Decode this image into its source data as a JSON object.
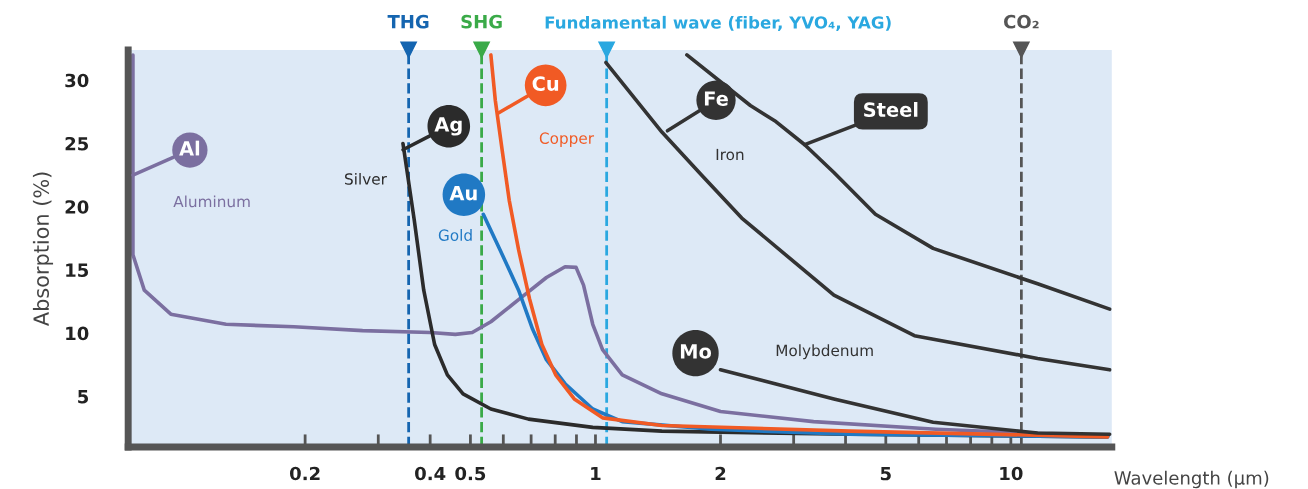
{
  "chart_data": {
    "type": "line",
    "xlabel": "Wavelength (μm)",
    "ylabel": "Absorption (%)",
    "log": "x",
    "xlim": [
      0.075,
      17.5
    ],
    "ylim": [
      1,
      32.4
    ],
    "xticks": [
      0.2,
      {
        "value": 0.3,
        "label": null
      },
      0.4,
      0.5,
      {
        "value": 0.6,
        "label": null
      },
      {
        "value": 0.7,
        "label": null
      },
      {
        "value": 0.8,
        "label": null
      },
      {
        "value": 0.9,
        "label": null
      },
      1,
      2,
      {
        "value": 3,
        "label": null
      },
      {
        "value": 4,
        "label": null
      },
      5,
      {
        "value": 6,
        "label": null
      },
      {
        "value": 7,
        "label": null
      },
      {
        "value": 8,
        "label": null
      },
      {
        "value": 9,
        "label": null
      },
      10
    ],
    "yticks": [
      5,
      10,
      15,
      20,
      25,
      30
    ],
    "grid": false,
    "legend": false,
    "series": [
      {
        "name": "Aluminum",
        "color": "#7b6fa0",
        "x": [
          0.077,
          0.077,
          0.082,
          0.095,
          0.129,
          0.188,
          0.275,
          0.4,
          0.46,
          0.505,
          0.56,
          0.653,
          0.762,
          0.845,
          0.898,
          0.936,
          0.985,
          1.04,
          1.16,
          1.445,
          2.0,
          3.35,
          6.6,
          17.1
        ],
        "values": [
          32,
          16.2,
          13.4,
          11.5,
          10.7,
          10.5,
          10.2,
          10.05,
          9.9,
          10.05,
          10.9,
          12.65,
          14.4,
          15.25,
          15.2,
          13.8,
          10.7,
          8.7,
          6.7,
          5.2,
          3.8,
          3.0,
          2.4,
          1.85
        ]
      },
      {
        "name": "Silver",
        "color": "#2b2b2b",
        "x": [
          0.344,
          0.366,
          0.386,
          0.41,
          0.44,
          0.48,
          0.56,
          0.69,
          0.985,
          1.445,
          4.1,
          17.1
        ],
        "values": [
          25.0,
          19.0,
          13.4,
          9.1,
          6.7,
          5.2,
          4.0,
          3.2,
          2.55,
          2.25,
          2.0,
          1.8
        ]
      },
      {
        "name": "Gold",
        "color": "#2079c4",
        "x": [
          0.537,
          0.589,
          0.653,
          0.706,
          0.762,
          0.845,
          0.985,
          1.16,
          1.9,
          4.1,
          17.1
        ],
        "values": [
          19.4,
          16.6,
          13.4,
          10.3,
          7.9,
          6.0,
          4.0,
          3.0,
          2.4,
          2.0,
          1.8
        ]
      },
      {
        "name": "Copper",
        "color": "#f15a24",
        "x": [
          0.56,
          0.574,
          0.596,
          0.62,
          0.653,
          0.694,
          0.743,
          0.802,
          0.889,
          1.04,
          1.445,
          4.1,
          17.1
        ],
        "values": [
          32,
          28.4,
          24.5,
          20.5,
          16.6,
          12.7,
          9.1,
          6.7,
          4.8,
          3.3,
          2.7,
          2.25,
          1.8
        ]
      },
      {
        "name": "Iron",
        "color": "#333333",
        "x": [
          1.06,
          1.445,
          1.8,
          2.25,
          3.75,
          5.86,
          11.6,
          17.3
        ],
        "values": [
          31.4,
          25.9,
          22.5,
          19.1,
          13.0,
          9.8,
          8.0,
          7.1
        ]
      },
      {
        "name": "Molybdenum",
        "color": "#333333",
        "x": [
          2.0,
          3.75,
          6.5,
          11.6,
          17.3
        ],
        "values": [
          7.1,
          4.8,
          2.95,
          2.1,
          2.0
        ]
      },
      {
        "name": "Steel",
        "color": "#333333",
        "x": [
          1.66,
          2.36,
          2.7,
          3.19,
          3.75,
          4.72,
          6.5,
          11.6,
          17.3
        ],
        "values": [
          32,
          28.0,
          26.8,
          24.9,
          22.7,
          19.4,
          16.7,
          13.9,
          11.9
        ]
      }
    ],
    "annotations": [
      {
        "text": "Al",
        "x": 0.077,
        "y": 22.5
      },
      {
        "text": "Ag",
        "x": 0.344,
        "y": 24.5
      },
      {
        "text": "Au",
        "x": 0.537,
        "y": 19.4
      },
      {
        "text": "Cu",
        "x": 0.584,
        "y": 27.4
      },
      {
        "text": "Fe",
        "x": 1.49,
        "y": 26.0
      },
      {
        "text": "Mo",
        "x": 2.0,
        "y": 7.1
      }
    ],
    "ref_lines": [
      {
        "axis": "x",
        "value": 0.355,
        "label": "THG",
        "color": "#1565b0",
        "line_style": "dashed"
      },
      {
        "axis": "x",
        "value": 0.532,
        "label": "SHG",
        "color": "#3aaa48",
        "line_style": "dashed"
      },
      {
        "axis": "x",
        "value": 1.064,
        "label": "Fundamental wave (fiber, YVO₄, YAG)",
        "color": "#2aa8e0",
        "line_style": "dashed"
      },
      {
        "axis": "x",
        "value": 10.6,
        "label": "CO₂",
        "color": "#555555",
        "line_style": "dashed"
      }
    ]
  }
}
